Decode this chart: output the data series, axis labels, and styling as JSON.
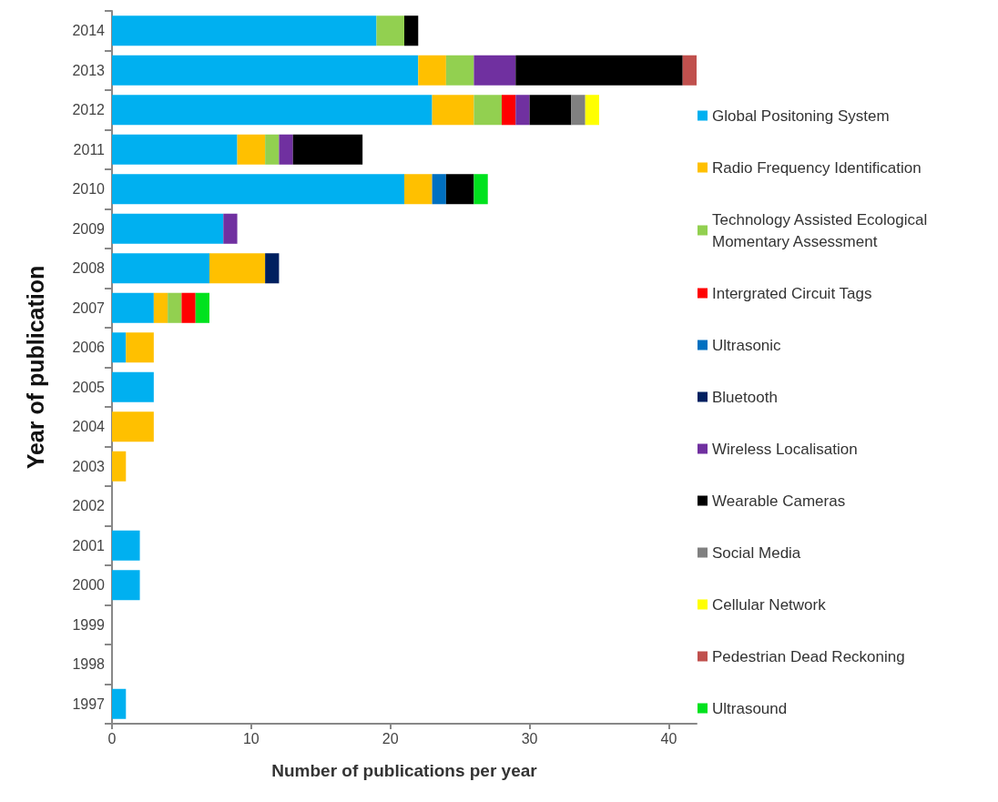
{
  "chart_data": {
    "type": "bar",
    "orientation": "horizontal",
    "stacked": true,
    "xlabel": "Number of publications per year",
    "ylabel": "Year of publication",
    "categories": [
      "2014",
      "2013",
      "2012",
      "2011",
      "2010",
      "2009",
      "2008",
      "2007",
      "2006",
      "2005",
      "2004",
      "2003",
      "2002",
      "2001",
      "2000",
      "1999",
      "1998",
      "1997"
    ],
    "xlim": [
      0,
      42
    ],
    "xticks": [
      0,
      10,
      20,
      30,
      40
    ],
    "grid": false,
    "legend": "right",
    "series": [
      {
        "name": "Global Positoning System",
        "color": "#00b0f0",
        "values": [
          19,
          22,
          23,
          9,
          21,
          8,
          7,
          3,
          1,
          3,
          null,
          null,
          null,
          2,
          2,
          null,
          null,
          1
        ]
      },
      {
        "name": "Radio Frequency Identification",
        "color": "#ffc000",
        "values": [
          null,
          2,
          3,
          2,
          2,
          null,
          4,
          1,
          2,
          null,
          3,
          1,
          null,
          null,
          null,
          null,
          null,
          null
        ]
      },
      {
        "name": "Technology Assisted Ecological Momentary Assessment",
        "color": "#92d050",
        "values": [
          2,
          2,
          2,
          1,
          null,
          null,
          null,
          1,
          null,
          null,
          null,
          null,
          null,
          null,
          null,
          null,
          null,
          null
        ]
      },
      {
        "name": "Intergrated Circuit Tags",
        "color": "#ff0000",
        "values": [
          null,
          null,
          1,
          null,
          null,
          null,
          null,
          1,
          null,
          null,
          null,
          null,
          null,
          null,
          null,
          null,
          null,
          null
        ]
      },
      {
        "name": "Ultrasonic",
        "color": "#0070c0",
        "values": [
          null,
          null,
          null,
          null,
          1,
          null,
          null,
          null,
          null,
          null,
          null,
          null,
          null,
          null,
          null,
          null,
          null,
          null
        ]
      },
      {
        "name": "Bluetooth",
        "color": "#002060",
        "values": [
          null,
          null,
          null,
          null,
          null,
          null,
          1,
          null,
          null,
          null,
          null,
          null,
          null,
          null,
          null,
          null,
          null,
          null
        ]
      },
      {
        "name": "Wireless Localisation",
        "color": "#7030a0",
        "values": [
          null,
          3,
          1,
          1,
          null,
          1,
          null,
          null,
          null,
          null,
          null,
          null,
          null,
          null,
          null,
          null,
          null,
          null
        ]
      },
      {
        "name": "Wearable Cameras",
        "color": "#000000",
        "values": [
          1,
          12,
          3,
          5,
          2,
          null,
          null,
          null,
          null,
          null,
          null,
          null,
          null,
          null,
          null,
          null,
          null,
          null
        ]
      },
      {
        "name": "Social Media",
        "color": "#808080",
        "values": [
          null,
          null,
          1,
          null,
          null,
          null,
          null,
          null,
          null,
          null,
          null,
          null,
          null,
          null,
          null,
          null,
          null,
          null
        ]
      },
      {
        "name": "Cellular Network",
        "color": "#ffff00",
        "values": [
          null,
          null,
          1,
          null,
          null,
          null,
          null,
          null,
          null,
          null,
          null,
          null,
          null,
          null,
          null,
          null,
          null,
          null
        ]
      },
      {
        "name": "Pedestrian Dead Reckoning",
        "color": "#c0504d",
        "values": [
          null,
          1,
          null,
          null,
          null,
          null,
          null,
          null,
          null,
          null,
          null,
          null,
          null,
          null,
          null,
          null,
          null,
          null
        ]
      },
      {
        "name": "Ultrasound",
        "color": "#00e21e",
        "values": [
          null,
          null,
          null,
          null,
          1,
          null,
          null,
          1,
          null,
          null,
          null,
          null,
          null,
          null,
          null,
          null,
          null,
          null
        ]
      }
    ]
  }
}
